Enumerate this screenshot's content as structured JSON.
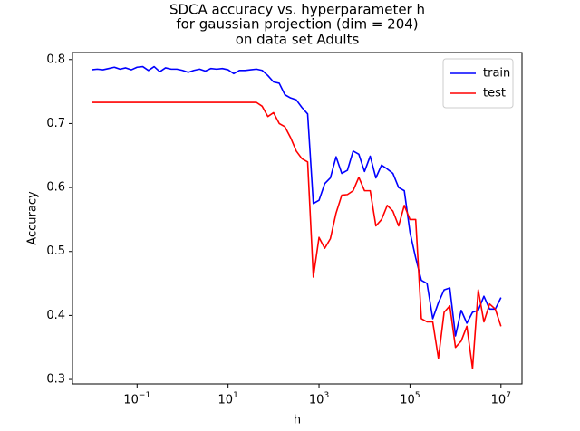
{
  "chart_data": {
    "type": "line",
    "title": [
      "SDCA accuracy vs. hyperparameter h",
      "for gaussian projection (dim = 204)",
      "on data set Adults"
    ],
    "xlabel": "h",
    "ylabel": "Accuracy",
    "x": [
      0.01,
      0.01334,
      0.01778,
      0.02371,
      0.03162,
      0.04217,
      0.05623,
      0.07499,
      0.1,
      0.1334,
      0.1778,
      0.2371,
      0.3162,
      0.4217,
      0.5623,
      0.7499,
      1,
      1.334,
      1.778,
      2.371,
      3.162,
      4.217,
      5.623,
      7.499,
      10.0,
      13.34,
      17.78,
      23.71,
      31.62,
      42.17,
      56.23,
      74.99,
      100.0,
      133.4,
      177.8,
      237.1,
      316.2,
      421.7,
      562.3,
      749.9,
      1000.0,
      1334.0,
      1778.0,
      2371.0,
      3162.0,
      4217.0,
      5623.0,
      7499.0,
      10000.0,
      13340.0,
      17780.0,
      23710.0,
      31620.0,
      42170.0,
      56230.0,
      74990.0,
      100000.0,
      133400.0,
      177800.0,
      237100.0,
      316200.0,
      421700.0,
      562300.0,
      749900.0,
      1000000.0,
      1334000.0,
      1778000.0,
      2371000.0,
      3162000.0,
      4217000.0,
      5623000.0,
      7499000.0,
      10000000.0
    ],
    "series": [
      {
        "name": "train",
        "color": "#0000ff",
        "values": [
          0.784,
          0.785,
          0.784,
          0.786,
          0.788,
          0.785,
          0.787,
          0.784,
          0.788,
          0.789,
          0.783,
          0.789,
          0.781,
          0.787,
          0.785,
          0.785,
          0.783,
          0.78,
          0.783,
          0.785,
          0.782,
          0.786,
          0.785,
          0.786,
          0.784,
          0.778,
          0.783,
          0.783,
          0.784,
          0.785,
          0.783,
          0.775,
          0.765,
          0.763,
          0.745,
          0.74,
          0.737,
          0.725,
          0.715,
          0.575,
          0.58,
          0.606,
          0.615,
          0.648,
          0.622,
          0.627,
          0.657,
          0.652,
          0.625,
          0.649,
          0.615,
          0.635,
          0.629,
          0.622,
          0.6,
          0.595,
          0.53,
          0.49,
          0.455,
          0.45,
          0.395,
          0.42,
          0.44,
          0.443,
          0.368,
          0.408,
          0.388,
          0.405,
          0.408,
          0.43,
          0.41,
          0.41,
          0.428
        ]
      },
      {
        "name": "test",
        "color": "#ff0000",
        "values": [
          0.733,
          0.733,
          0.733,
          0.733,
          0.733,
          0.733,
          0.733,
          0.733,
          0.733,
          0.733,
          0.733,
          0.733,
          0.733,
          0.733,
          0.733,
          0.733,
          0.733,
          0.733,
          0.733,
          0.733,
          0.733,
          0.733,
          0.733,
          0.733,
          0.733,
          0.733,
          0.733,
          0.733,
          0.733,
          0.733,
          0.727,
          0.711,
          0.717,
          0.7,
          0.695,
          0.678,
          0.657,
          0.645,
          0.64,
          0.46,
          0.522,
          0.505,
          0.52,
          0.56,
          0.588,
          0.589,
          0.595,
          0.616,
          0.595,
          0.595,
          0.54,
          0.55,
          0.572,
          0.563,
          0.54,
          0.572,
          0.55,
          0.55,
          0.395,
          0.39,
          0.39,
          0.333,
          0.405,
          0.415,
          0.35,
          0.36,
          0.383,
          0.317,
          0.44,
          0.39,
          0.418,
          0.41,
          0.383
        ]
      }
    ],
    "xscale": "log",
    "xlim": [
      0.0038,
      29000000
    ],
    "ylim": [
      0.293,
      0.811
    ],
    "xticks": [
      {
        "value": 0.1,
        "label": "10−1"
      },
      {
        "value": 10,
        "label": "101"
      },
      {
        "value": 1000,
        "label": "103"
      },
      {
        "value": 100000,
        "label": "105"
      },
      {
        "value": 10000000,
        "label": "107"
      }
    ],
    "yticks": [
      0.3,
      0.4,
      0.5,
      0.6,
      0.7,
      0.8
    ],
    "legend": "upper right"
  }
}
